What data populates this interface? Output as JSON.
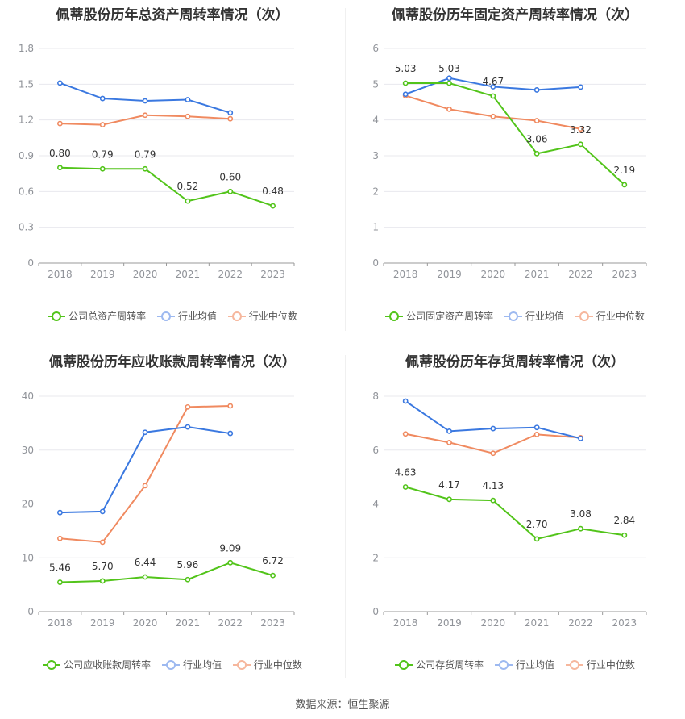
{
  "colors": {
    "company": "#52c41a",
    "industry_avg": "#3a78e0",
    "industry_median": "#f08a60",
    "grid": "#e8e8ee",
    "axis": "#999999"
  },
  "charts": [
    {
      "title": "佩蒂股份历年总资产周转率情况（次）",
      "legend": [
        "公司总资产周转率",
        "行业均值",
        "行业中位数"
      ],
      "yticks": [
        "0",
        "0.3",
        "0.6",
        "0.9",
        "1.2",
        "1.5",
        "1.8"
      ],
      "value_labels": [
        "0.80",
        "0.79",
        "0.79",
        "0.52",
        "0.60",
        "0.48"
      ]
    },
    {
      "title": "佩蒂股份历年固定资产周转率情况（次）",
      "legend": [
        "公司固定资产周转率",
        "行业均值",
        "行业中位数"
      ],
      "yticks": [
        "0",
        "1",
        "2",
        "3",
        "4",
        "5",
        "6"
      ],
      "value_labels": [
        "5.03",
        "5.03",
        "4.67",
        "3.06",
        "3.32",
        "2.19"
      ]
    },
    {
      "title": "佩蒂股份历年应收账款周转率情况（次）",
      "legend": [
        "公司应收账款周转率",
        "行业均值",
        "行业中位数"
      ],
      "yticks": [
        "0",
        "10",
        "20",
        "30",
        "40"
      ],
      "value_labels": [
        "5.46",
        "5.70",
        "6.44",
        "5.96",
        "9.09",
        "6.72"
      ]
    },
    {
      "title": "佩蒂股份历年存货周转率情况（次）",
      "legend": [
        "公司存货周转率",
        "行业均值",
        "行业中位数"
      ],
      "yticks": [
        "0",
        "2",
        "4",
        "6",
        "8"
      ],
      "value_labels": [
        "4.63",
        "4.17",
        "4.13",
        "2.70",
        "3.08",
        "2.84"
      ]
    }
  ],
  "footer": "数据来源：恒生聚源",
  "chart_data": [
    {
      "type": "line",
      "title": "佩蒂股份历年总资产周转率情况（次）",
      "categories": [
        "2018",
        "2019",
        "2020",
        "2021",
        "2022",
        "2023"
      ],
      "ylim": [
        0,
        1.8
      ],
      "series": [
        {
          "name": "公司总资产周转率",
          "values": [
            0.8,
            0.79,
            0.79,
            0.52,
            0.6,
            0.48
          ]
        },
        {
          "name": "行业均值",
          "values": [
            1.51,
            1.38,
            1.36,
            1.37,
            1.26,
            null
          ]
        },
        {
          "name": "行业中位数",
          "values": [
            1.17,
            1.16,
            1.24,
            1.23,
            1.21,
            null
          ]
        }
      ]
    },
    {
      "type": "line",
      "title": "佩蒂股份历年固定资产周转率情况（次）",
      "categories": [
        "2018",
        "2019",
        "2020",
        "2021",
        "2022",
        "2023"
      ],
      "ylim": [
        0,
        6
      ],
      "series": [
        {
          "name": "公司固定资产周转率",
          "values": [
            5.03,
            5.03,
            4.67,
            3.06,
            3.32,
            2.19
          ]
        },
        {
          "name": "行业均值",
          "values": [
            4.72,
            5.17,
            4.93,
            4.84,
            4.92,
            null
          ]
        },
        {
          "name": "行业中位数",
          "values": [
            4.68,
            4.3,
            4.1,
            3.98,
            3.75,
            null
          ]
        }
      ]
    },
    {
      "type": "line",
      "title": "佩蒂股份历年应收账款周转率情况（次）",
      "categories": [
        "2018",
        "2019",
        "2020",
        "2021",
        "2022",
        "2023"
      ],
      "ylim": [
        0,
        40
      ],
      "series": [
        {
          "name": "公司应收账款周转率",
          "values": [
            5.46,
            5.7,
            6.44,
            5.96,
            9.09,
            6.72
          ]
        },
        {
          "name": "行业均值",
          "values": [
            18.4,
            18.6,
            33.3,
            34.3,
            33.1,
            null
          ]
        },
        {
          "name": "行业中位数",
          "values": [
            13.6,
            12.9,
            23.4,
            38.0,
            38.2,
            null
          ]
        }
      ]
    },
    {
      "type": "line",
      "title": "佩蒂股份历年存货周转率情况（次）",
      "categories": [
        "2018",
        "2019",
        "2020",
        "2021",
        "2022",
        "2023"
      ],
      "ylim": [
        0,
        8
      ],
      "series": [
        {
          "name": "公司存货周转率",
          "values": [
            4.63,
            4.17,
            4.13,
            2.7,
            3.08,
            2.84
          ]
        },
        {
          "name": "行业均值",
          "values": [
            7.82,
            6.7,
            6.8,
            6.84,
            6.43,
            null
          ]
        },
        {
          "name": "行业中位数",
          "values": [
            6.6,
            6.28,
            5.88,
            6.58,
            6.46,
            null
          ]
        }
      ]
    }
  ]
}
